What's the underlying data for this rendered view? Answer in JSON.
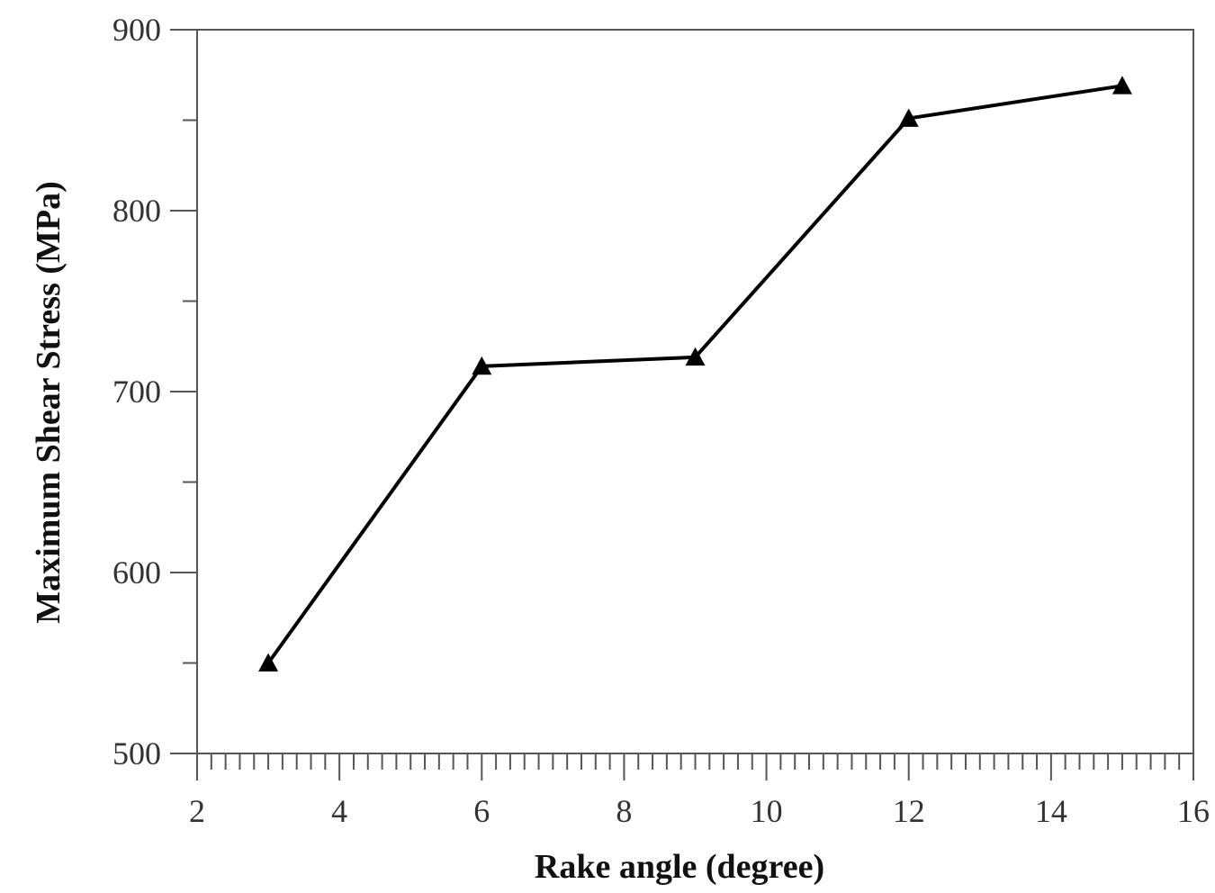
{
  "chart_data": {
    "type": "line",
    "title": "",
    "xlabel": "Rake angle (degree)",
    "ylabel": "Maximum Shear Stress (MPa)",
    "xlim": [
      2,
      16
    ],
    "ylim": [
      500,
      900
    ],
    "x_ticks": [
      2,
      4,
      6,
      8,
      10,
      12,
      14,
      16
    ],
    "x_tick_labels": [
      "2",
      "4",
      "6",
      "8",
      "10",
      "12",
      "14",
      "16"
    ],
    "x_minor_step": 0.2,
    "y_ticks": [
      500,
      600,
      700,
      800,
      900
    ],
    "y_tick_labels": [
      "500",
      "600",
      "700",
      "800",
      "900"
    ],
    "y_minor_step": 50,
    "grid": false,
    "legend": "none",
    "series": [
      {
        "marker": "triangle",
        "color": "#000000",
        "x": [
          3,
          6,
          9,
          12,
          15
        ],
        "y": [
          550,
          714,
          719,
          851,
          869
        ]
      }
    ]
  }
}
